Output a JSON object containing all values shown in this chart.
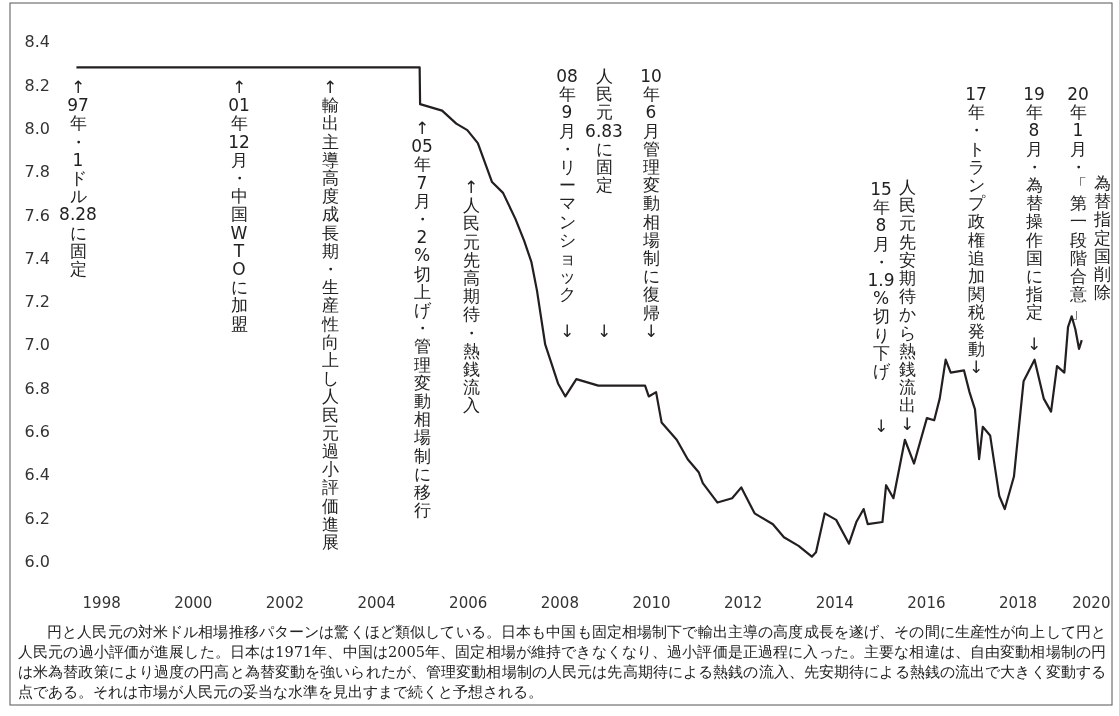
{
  "chart_data": {
    "type": "line",
    "x": [
      1997.45,
      2004.94,
      2004.95,
      2005.43,
      2005.74,
      2005.98,
      2006.21,
      2006.52,
      2006.76,
      2007.03,
      2007.22,
      2007.38,
      2007.5,
      2007.68,
      2007.79,
      2007.96,
      2008.12,
      2008.36,
      2008.84,
      2009.86,
      2009.94,
      2010.1,
      2010.22,
      2010.55,
      2010.79,
      2011.03,
      2011.12,
      2011.44,
      2011.76,
      2011.96,
      2012.25,
      2012.65,
      2012.89,
      2013.21,
      2013.5,
      2013.59,
      2013.78,
      2014.03,
      2014.31,
      2014.47,
      2014.63,
      2014.72,
      2015.04,
      2015.12,
      2015.28,
      2015.53,
      2015.73,
      2016.01,
      2016.17,
      2016.29,
      2016.42,
      2016.53,
      2016.82,
      2016.94,
      2017.06,
      2017.15,
      2017.23,
      2017.39,
      2017.59,
      2017.71,
      2017.91,
      2018.12,
      2018.36,
      2018.56,
      2018.72,
      2018.85,
      2019.01,
      2019.09,
      2019.17,
      2019.25,
      2019.33,
      2019.39
    ],
    "values": [
      8.28,
      8.28,
      8.11,
      8.08,
      8.02,
      7.99,
      7.93,
      7.75,
      7.7,
      7.58,
      7.48,
      7.38,
      7.25,
      7.0,
      6.93,
      6.82,
      6.76,
      6.84,
      6.81,
      6.81,
      6.76,
      6.78,
      6.64,
      6.56,
      6.47,
      6.41,
      6.36,
      6.27,
      6.29,
      6.34,
      6.22,
      6.17,
      6.11,
      6.07,
      6.02,
      6.04,
      6.22,
      6.19,
      6.08,
      6.18,
      6.24,
      6.17,
      6.18,
      6.35,
      6.29,
      6.56,
      6.45,
      6.66,
      6.65,
      6.75,
      6.93,
      6.87,
      6.88,
      6.78,
      6.7,
      6.47,
      6.62,
      6.58,
      6.3,
      6.24,
      6.39,
      6.83,
      6.93,
      6.75,
      6.69,
      6.9,
      6.87,
      7.08,
      7.13,
      7.07,
      6.98,
      7.02
    ],
    "color": "#231f20",
    "xlim": [
      1996.0,
      2020.05
    ],
    "ylim": [
      5.335,
      8.577
    ],
    "xticks": [
      1998,
      2000,
      2002,
      2004,
      2006,
      2008,
      2010,
      2012,
      2014,
      2016,
      2018,
      {
        "value": 2019.6,
        "label": "2020"
      }
    ],
    "yticks": [
      {
        "value": 6,
        "label": "6.0"
      },
      6.2,
      6.4,
      6.6,
      6.8,
      {
        "value": 7,
        "label": "7.0"
      },
      7.2,
      7.4,
      7.6,
      7.8,
      {
        "value": 8,
        "label": "8.0"
      },
      8.2,
      8.4
    ],
    "annotations": [
      "↑97年・1ドル8.28に固定",
      "↑01年12月・中国WTOに加盟",
      "↑輸出主導高度成長期・生産性向上し人民元過小評価進展",
      "↑05年7月・2%切上げ・管理変動相場制に移行",
      "↑人民元先高期待・熱銭流入",
      "08年9月・リーマンショック",
      "↓",
      "人民元6.83に固定",
      "↓",
      "10年6月管理変動相場制に復帰↓",
      "15年8月・1.9%切り下げ",
      "↓",
      "人民元先安期待から熱銭流出↓",
      "17年・トランプ政権追加関税発動↓",
      "19年8月・為替操作国に指定",
      "↓",
      "20年1月・「第一段階合意」",
      "為替指定国削除",
      "円と人民元の対米ドル相場推移パターンは驚くほど類似している。日本も中国も固定相場制下で輸出主導の高度成長を遂げ、その間に生産性が向上して円と人民元の過小評価が進展した。日本は1971年、中国は2005年、固定相場が維持できなくなり、過小評価是正過程に入った。主要な相違は、自由変動相場制の円は米為替政策により過度の円高と為替変動を強いられたが、管理変動相場制の人民元は先高期待による熱銭の流入、先安期待による熱銭の流出で大きく変動する点である。それは市場が人民元の妥当な水準を見出すまで続くと予想される。"
    ]
  }
}
